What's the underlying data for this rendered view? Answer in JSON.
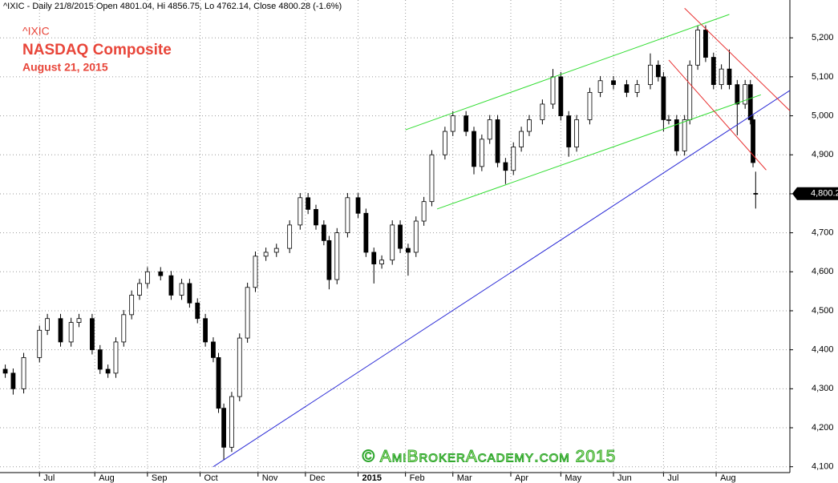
{
  "chart_data": {
    "type": "candlestick",
    "header": "^IXIC - Daily 21/8/2015 Open 4801.04, Hi 4856.75, Lo 4762.14, Close 4800.28 (-1.6%)",
    "symbol": "^IXIC",
    "title": "NASDAQ Composite",
    "subtitle": "August 21, 2015",
    "watermark": "© AmiBrokerAcademy.com 2015",
    "up_color": "#ffffff",
    "down_color": "#000000",
    "xlim": [
      0,
      300
    ],
    "xticks": [
      {
        "value": 15,
        "label": "Jul"
      },
      {
        "value": 36,
        "label": "Aug"
      },
      {
        "value": 56,
        "label": "Sep"
      },
      {
        "value": 76,
        "label": "Oct"
      },
      {
        "value": 98,
        "label": "Nov"
      },
      {
        "value": 116,
        "label": "Dec"
      },
      {
        "value": 136,
        "label": "2015"
      },
      {
        "value": 154,
        "label": "Feb"
      },
      {
        "value": 172,
        "label": "Mar"
      },
      {
        "value": 194,
        "label": "Apr"
      },
      {
        "value": 213,
        "label": "May"
      },
      {
        "value": 233,
        "label": "Jun"
      },
      {
        "value": 252,
        "label": "Jul"
      },
      {
        "value": 272,
        "label": "Aug"
      }
    ],
    "ylim": [
      4085,
      5297
    ],
    "yticks": [
      {
        "value": 4100,
        "label": "4,100"
      },
      {
        "value": 4200,
        "label": "4,200"
      },
      {
        "value": 4300,
        "label": "4,300"
      },
      {
        "value": 4400,
        "label": "4,400"
      },
      {
        "value": 4500,
        "label": "4,500"
      },
      {
        "value": 4600,
        "label": "4,600"
      },
      {
        "value": 4700,
        "label": "4,700"
      },
      {
        "value": 4800,
        "label": "4,800"
      },
      {
        "value": 4900,
        "label": "4,900"
      },
      {
        "value": 5000,
        "label": "5,000"
      },
      {
        "value": 5100,
        "label": "5,100"
      },
      {
        "value": 5200,
        "label": "5,200"
      }
    ],
    "grid": true,
    "last_price": {
      "value": 4800.28,
      "label": "4,800.28"
    },
    "x": [
      2,
      5,
      9,
      15,
      18,
      23,
      27,
      30,
      35,
      38,
      41,
      44,
      47,
      50,
      53,
      56,
      61,
      65,
      69,
      72,
      75,
      78,
      81,
      83,
      85,
      88,
      91,
      94,
      97,
      101,
      105,
      110,
      114,
      117,
      120,
      123,
      125,
      128,
      132,
      136,
      139,
      142,
      145,
      149,
      152,
      155,
      158,
      161,
      164,
      169,
      172,
      177,
      180,
      183,
      186,
      189,
      192,
      195,
      198,
      201,
      206,
      210,
      213,
      216,
      219,
      224,
      228,
      233,
      238,
      242,
      247,
      250,
      252,
      254,
      257,
      260,
      262,
      265,
      268,
      271,
      274,
      277,
      280,
      283,
      285,
      286,
      287
    ],
    "open": [
      4350,
      4340,
      4300,
      4380,
      4450,
      4480,
      4420,
      4470,
      4480,
      4400,
      4350,
      4340,
      4420,
      4490,
      4540,
      4570,
      4600,
      4590,
      4540,
      4570,
      4520,
      4480,
      4420,
      4380,
      4250,
      4150,
      4280,
      4430,
      4560,
      4640,
      4650,
      4660,
      4720,
      4790,
      4760,
      4720,
      4680,
      4580,
      4700,
      4790,
      4750,
      4650,
      4620,
      4630,
      4720,
      4660,
      4650,
      4730,
      4780,
      4900,
      4960,
      5000,
      4960,
      4870,
      4940,
      4990,
      4880,
      4860,
      4920,
      4960,
      4990,
      5030,
      5100,
      5000,
      4920,
      4990,
      5060,
      5090,
      5080,
      5060,
      5080,
      5130,
      5100,
      4990,
      4990,
      4910,
      4990,
      5130,
      5220,
      5150,
      5080,
      5120,
      5080,
      5030,
      5080,
      4990,
      4801.04
    ],
    "high": [
      4362,
      4352,
      4392,
      4462,
      4492,
      4492,
      4482,
      4492,
      4492,
      4412,
      4362,
      4432,
      4502,
      4552,
      4582,
      4612,
      4612,
      4602,
      4582,
      4582,
      4532,
      4492,
      4432,
      4392,
      4262,
      4292,
      4442,
      4572,
      4652,
      4662,
      4672,
      4732,
      4802,
      4802,
      4772,
      4732,
      4692,
      4712,
      4802,
      4802,
      4762,
      4662,
      4642,
      4732,
      4732,
      4672,
      4742,
      4792,
      4912,
      4972,
      5012,
      5012,
      4972,
      4952,
      5002,
      5002,
      4892,
      4932,
      4972,
      5002,
      5042,
      5120,
      5112,
      5012,
      5002,
      5072,
      5102,
      5102,
      5092,
      5092,
      5160,
      5142,
      5112,
      5002,
      5002,
      5002,
      5142,
      5232,
      5232,
      5162,
      5132,
      5170,
      5092,
      5092,
      5092,
      5002,
      4856.75
    ],
    "low": [
      4328,
      4285,
      4288,
      4368,
      4438,
      4408,
      4408,
      4458,
      4388,
      4338,
      4328,
      4328,
      4408,
      4478,
      4528,
      4558,
      4578,
      4528,
      4528,
      4508,
      4468,
      4408,
      4368,
      4238,
      4117,
      4138,
      4268,
      4418,
      4548,
      4628,
      4638,
      4648,
      4708,
      4748,
      4708,
      4668,
      4555,
      4568,
      4688,
      4738,
      4638,
      4570,
      4608,
      4618,
      4648,
      4590,
      4638,
      4718,
      4768,
      4888,
      4948,
      4948,
      4850,
      4858,
      4928,
      4868,
      4825,
      4848,
      4908,
      4948,
      4978,
      5018,
      4988,
      4895,
      4908,
      4978,
      5048,
      5068,
      5048,
      5048,
      5068,
      5088,
      4960,
      4978,
      4898,
      4898,
      4978,
      5118,
      5138,
      5068,
      5068,
      5068,
      4950,
      5018,
      4978,
      4868,
      4762.14
    ],
    "close": [
      4340,
      4300,
      4380,
      4450,
      4480,
      4420,
      4470,
      4480,
      4400,
      4350,
      4340,
      4420,
      4490,
      4540,
      4570,
      4600,
      4590,
      4540,
      4570,
      4520,
      4480,
      4420,
      4380,
      4250,
      4150,
      4280,
      4430,
      4560,
      4640,
      4650,
      4660,
      4720,
      4790,
      4760,
      4720,
      4680,
      4580,
      4700,
      4790,
      4750,
      4650,
      4620,
      4630,
      4720,
      4660,
      4650,
      4730,
      4780,
      4900,
      4960,
      5000,
      4960,
      4870,
      4940,
      4990,
      4880,
      4860,
      4920,
      4960,
      4990,
      5030,
      5100,
      5000,
      4920,
      4990,
      5060,
      5090,
      5080,
      5060,
      5080,
      5130,
      5100,
      4990,
      4990,
      4910,
      4990,
      5130,
      5220,
      5150,
      5080,
      5120,
      5080,
      5030,
      5080,
      4990,
      4880,
      4800.28
    ],
    "trend_lines": [
      {
        "color": "#2b2bd6",
        "x": [
          81,
          300
        ],
        "y": [
          4100,
          5065
        ]
      },
      {
        "color": "#33dd33",
        "x": [
          154,
          277
        ],
        "y": [
          4964,
          5260
        ]
      },
      {
        "color": "#33dd33",
        "x": [
          166,
          289
        ],
        "y": [
          4761,
          5054
        ]
      },
      {
        "color": "#e83030",
        "x": [
          260,
          300
        ],
        "y": [
          5276,
          5013
        ]
      },
      {
        "color": "#e83030",
        "x": [
          254,
          291
        ],
        "y": [
          5143,
          4861
        ]
      }
    ]
  }
}
